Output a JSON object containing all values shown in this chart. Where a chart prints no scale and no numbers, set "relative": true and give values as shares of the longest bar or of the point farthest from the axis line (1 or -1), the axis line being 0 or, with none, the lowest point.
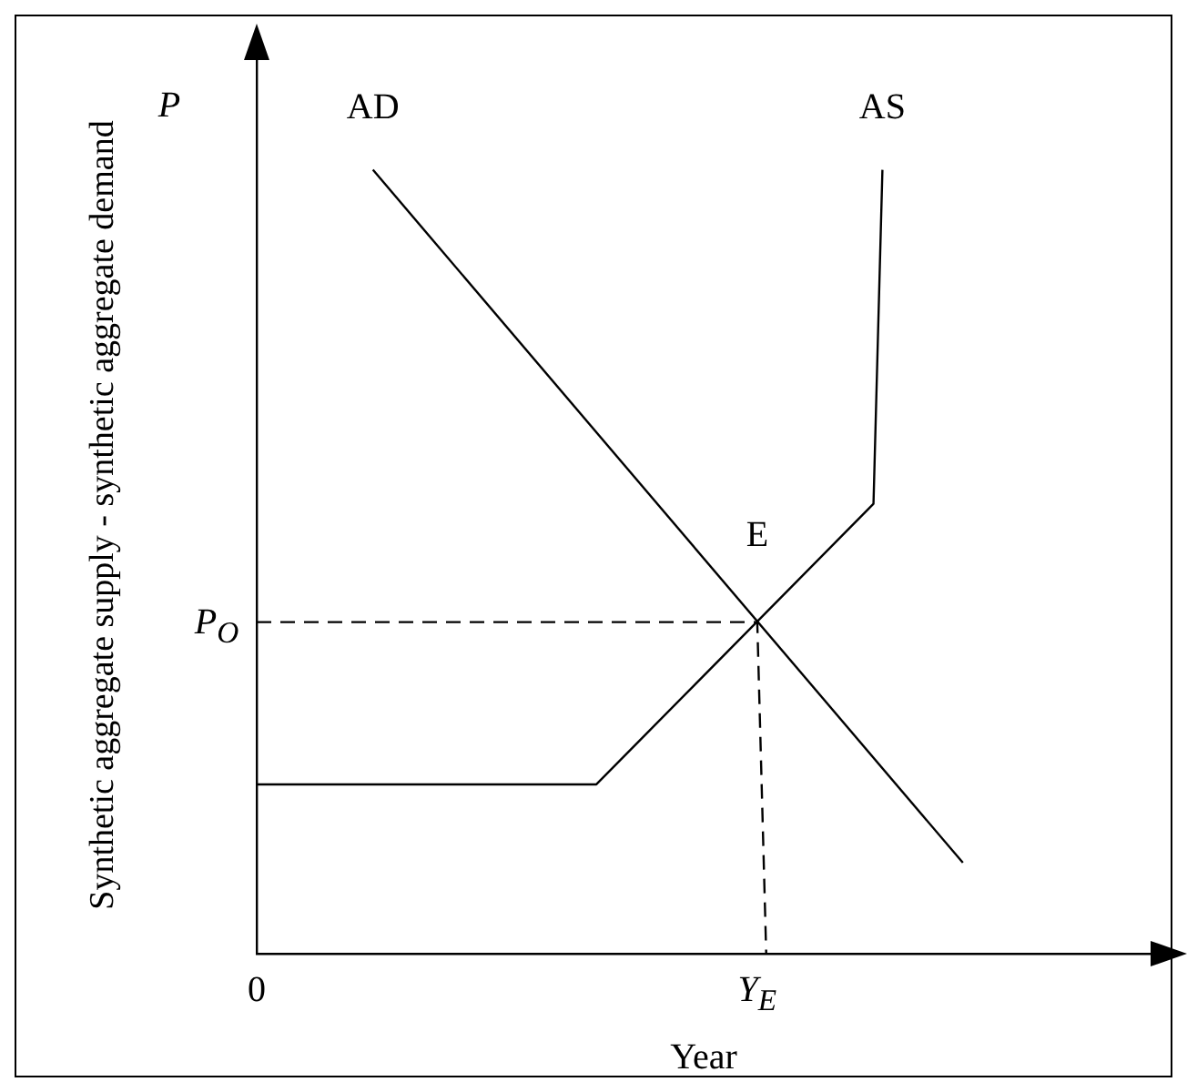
{
  "chart_data": {
    "type": "line",
    "xlabel": "Year",
    "ylabel": "Synthetic aggregate supply - synthetic aggregate demand",
    "relative": true,
    "categories": [
      "0",
      null,
      null,
      null,
      null,
      null,
      null,
      null,
      null,
      null,
      null,
      null,
      null,
      null,
      null,
      null,
      null,
      null,
      null,
      null,
      null,
      null,
      null,
      null,
      null,
      null,
      null,
      null,
      null,
      null,
      null,
      null,
      null,
      null,
      null,
      null,
      null,
      null,
      null,
      null,
      null,
      null,
      null,
      null,
      null,
      null,
      null,
      null,
      null,
      null,
      null,
      null,
      null,
      null,
      null,
      null,
      "Y$_{E}$",
      null,
      null,
      null,
      null,
      null,
      null,
      null,
      null,
      null,
      null,
      null,
      null,
      null,
      null,
      null,
      null,
      null,
      null,
      null,
      null,
      null,
      null,
      null,
      null,
      null,
      null,
      null,
      null,
      null,
      null,
      null,
      null,
      null,
      null,
      null,
      null,
      null,
      null,
      null,
      null,
      null,
      null,
      null,
      null
    ],
    "grid": false,
    "legend": false,
    "annotations": [
      "P",
      {
        "text": "E",
        "x": "Y$_{E}$",
        "y": 0.423
      },
      {
        "text": "P$_{O}$",
        "x": "0",
        "y": 0.423
      }
    ],
    "series": [
      {
        "name": "AD",
        "color": "#000000",
        "values": [
          null,
          null,
          null,
          null,
          null,
          null,
          null,
          null,
          null,
          null,
          null,
          null,
          null,
          1,
          null,
          null,
          null,
          null,
          null,
          null,
          null,
          null,
          null,
          null,
          null,
          null,
          null,
          null,
          null,
          null,
          null,
          null,
          null,
          null,
          null,
          null,
          null,
          null,
          null,
          null,
          null,
          null,
          null,
          null,
          null,
          null,
          null,
          null,
          null,
          null,
          null,
          null,
          null,
          null,
          null,
          null,
          null,
          null,
          null,
          null,
          null,
          null,
          null,
          null,
          null,
          null,
          null,
          null,
          null,
          null,
          null,
          null,
          null,
          null,
          null,
          null,
          null,
          null,
          null,
          0.116,
          null,
          null,
          null,
          null,
          null,
          null,
          null,
          null,
          null,
          null,
          null,
          null,
          null,
          null,
          null,
          null,
          null,
          null,
          null,
          null,
          null
        ]
      },
      {
        "name": "AS",
        "color": "#000000",
        "values": [
          0.216,
          null,
          null,
          null,
          null,
          null,
          null,
          null,
          null,
          null,
          null,
          null,
          null,
          null,
          null,
          null,
          null,
          null,
          null,
          null,
          null,
          null,
          null,
          null,
          null,
          null,
          null,
          null,
          null,
          null,
          null,
          null,
          null,
          null,
          null,
          null,
          null,
          null,
          0.216,
          null,
          null,
          null,
          null,
          null,
          null,
          null,
          null,
          null,
          null,
          null,
          null,
          null,
          null,
          null,
          null,
          null,
          null,
          null,
          null,
          null,
          null,
          null,
          null,
          null,
          null,
          null,
          null,
          null,
          null,
          0.574,
          1,
          null,
          null,
          null,
          null,
          null,
          null,
          null,
          null,
          null,
          null,
          null,
          null,
          null,
          null,
          null,
          null,
          null,
          null,
          null,
          null,
          null,
          null,
          null,
          null,
          null,
          null,
          null,
          null,
          null,
          null
        ]
      },
      {
        "color": "#000000",
        "line_style": "dashed",
        "values": [
          0.423,
          null,
          null,
          null,
          null,
          null,
          null,
          null,
          null,
          null,
          null,
          null,
          null,
          null,
          null,
          null,
          null,
          null,
          null,
          null,
          null,
          null,
          null,
          null,
          null,
          null,
          null,
          null,
          null,
          null,
          null,
          null,
          null,
          null,
          null,
          null,
          null,
          null,
          null,
          null,
          null,
          null,
          null,
          null,
          null,
          null,
          null,
          null,
          null,
          null,
          null,
          null,
          null,
          null,
          null,
          null,
          0.423,
          0,
          null,
          null,
          null,
          null,
          null,
          null,
          null,
          null,
          null,
          null,
          null,
          null,
          null,
          null,
          null,
          null,
          null,
          null,
          null,
          null,
          null,
          null,
          null,
          null,
          null,
          null,
          null,
          null,
          null,
          null,
          null,
          null,
          null,
          null,
          null,
          null,
          null,
          null,
          null,
          null,
          null,
          null,
          null
        ]
      }
    ]
  }
}
